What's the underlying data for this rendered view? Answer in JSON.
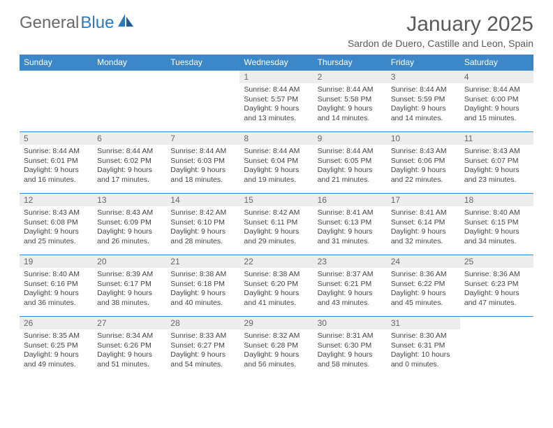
{
  "logo": {
    "text1": "General",
    "text2": "Blue"
  },
  "title": "January 2025",
  "location": "Sardon de Duero, Castille and Leon, Spain",
  "colors": {
    "header_bg": "#3b87c8",
    "header_text": "#ffffff",
    "daynum_bg": "#ededed",
    "rule": "#3b87c8",
    "logo_gray": "#6a6a6a",
    "logo_blue": "#2b7bbf"
  },
  "weekdays": [
    "Sunday",
    "Monday",
    "Tuesday",
    "Wednesday",
    "Thursday",
    "Friday",
    "Saturday"
  ],
  "weeks": [
    [
      null,
      null,
      null,
      {
        "n": "1",
        "sr": "8:44 AM",
        "ss": "5:57 PM",
        "d1": "Daylight: 9 hours",
        "d2": "and 13 minutes."
      },
      {
        "n": "2",
        "sr": "8:44 AM",
        "ss": "5:58 PM",
        "d1": "Daylight: 9 hours",
        "d2": "and 14 minutes."
      },
      {
        "n": "3",
        "sr": "8:44 AM",
        "ss": "5:59 PM",
        "d1": "Daylight: 9 hours",
        "d2": "and 14 minutes."
      },
      {
        "n": "4",
        "sr": "8:44 AM",
        "ss": "6:00 PM",
        "d1": "Daylight: 9 hours",
        "d2": "and 15 minutes."
      }
    ],
    [
      {
        "n": "5",
        "sr": "8:44 AM",
        "ss": "6:01 PM",
        "d1": "Daylight: 9 hours",
        "d2": "and 16 minutes."
      },
      {
        "n": "6",
        "sr": "8:44 AM",
        "ss": "6:02 PM",
        "d1": "Daylight: 9 hours",
        "d2": "and 17 minutes."
      },
      {
        "n": "7",
        "sr": "8:44 AM",
        "ss": "6:03 PM",
        "d1": "Daylight: 9 hours",
        "d2": "and 18 minutes."
      },
      {
        "n": "8",
        "sr": "8:44 AM",
        "ss": "6:04 PM",
        "d1": "Daylight: 9 hours",
        "d2": "and 19 minutes."
      },
      {
        "n": "9",
        "sr": "8:44 AM",
        "ss": "6:05 PM",
        "d1": "Daylight: 9 hours",
        "d2": "and 21 minutes."
      },
      {
        "n": "10",
        "sr": "8:43 AM",
        "ss": "6:06 PM",
        "d1": "Daylight: 9 hours",
        "d2": "and 22 minutes."
      },
      {
        "n": "11",
        "sr": "8:43 AM",
        "ss": "6:07 PM",
        "d1": "Daylight: 9 hours",
        "d2": "and 23 minutes."
      }
    ],
    [
      {
        "n": "12",
        "sr": "8:43 AM",
        "ss": "6:08 PM",
        "d1": "Daylight: 9 hours",
        "d2": "and 25 minutes."
      },
      {
        "n": "13",
        "sr": "8:43 AM",
        "ss": "6:09 PM",
        "d1": "Daylight: 9 hours",
        "d2": "and 26 minutes."
      },
      {
        "n": "14",
        "sr": "8:42 AM",
        "ss": "6:10 PM",
        "d1": "Daylight: 9 hours",
        "d2": "and 28 minutes."
      },
      {
        "n": "15",
        "sr": "8:42 AM",
        "ss": "6:11 PM",
        "d1": "Daylight: 9 hours",
        "d2": "and 29 minutes."
      },
      {
        "n": "16",
        "sr": "8:41 AM",
        "ss": "6:13 PM",
        "d1": "Daylight: 9 hours",
        "d2": "and 31 minutes."
      },
      {
        "n": "17",
        "sr": "8:41 AM",
        "ss": "6:14 PM",
        "d1": "Daylight: 9 hours",
        "d2": "and 32 minutes."
      },
      {
        "n": "18",
        "sr": "8:40 AM",
        "ss": "6:15 PM",
        "d1": "Daylight: 9 hours",
        "d2": "and 34 minutes."
      }
    ],
    [
      {
        "n": "19",
        "sr": "8:40 AM",
        "ss": "6:16 PM",
        "d1": "Daylight: 9 hours",
        "d2": "and 36 minutes."
      },
      {
        "n": "20",
        "sr": "8:39 AM",
        "ss": "6:17 PM",
        "d1": "Daylight: 9 hours",
        "d2": "and 38 minutes."
      },
      {
        "n": "21",
        "sr": "8:38 AM",
        "ss": "6:18 PM",
        "d1": "Daylight: 9 hours",
        "d2": "and 40 minutes."
      },
      {
        "n": "22",
        "sr": "8:38 AM",
        "ss": "6:20 PM",
        "d1": "Daylight: 9 hours",
        "d2": "and 41 minutes."
      },
      {
        "n": "23",
        "sr": "8:37 AM",
        "ss": "6:21 PM",
        "d1": "Daylight: 9 hours",
        "d2": "and 43 minutes."
      },
      {
        "n": "24",
        "sr": "8:36 AM",
        "ss": "6:22 PM",
        "d1": "Daylight: 9 hours",
        "d2": "and 45 minutes."
      },
      {
        "n": "25",
        "sr": "8:36 AM",
        "ss": "6:23 PM",
        "d1": "Daylight: 9 hours",
        "d2": "and 47 minutes."
      }
    ],
    [
      {
        "n": "26",
        "sr": "8:35 AM",
        "ss": "6:25 PM",
        "d1": "Daylight: 9 hours",
        "d2": "and 49 minutes."
      },
      {
        "n": "27",
        "sr": "8:34 AM",
        "ss": "6:26 PM",
        "d1": "Daylight: 9 hours",
        "d2": "and 51 minutes."
      },
      {
        "n": "28",
        "sr": "8:33 AM",
        "ss": "6:27 PM",
        "d1": "Daylight: 9 hours",
        "d2": "and 54 minutes."
      },
      {
        "n": "29",
        "sr": "8:32 AM",
        "ss": "6:28 PM",
        "d1": "Daylight: 9 hours",
        "d2": "and 56 minutes."
      },
      {
        "n": "30",
        "sr": "8:31 AM",
        "ss": "6:30 PM",
        "d1": "Daylight: 9 hours",
        "d2": "and 58 minutes."
      },
      {
        "n": "31",
        "sr": "8:30 AM",
        "ss": "6:31 PM",
        "d1": "Daylight: 10 hours",
        "d2": "and 0 minutes."
      },
      null
    ]
  ]
}
